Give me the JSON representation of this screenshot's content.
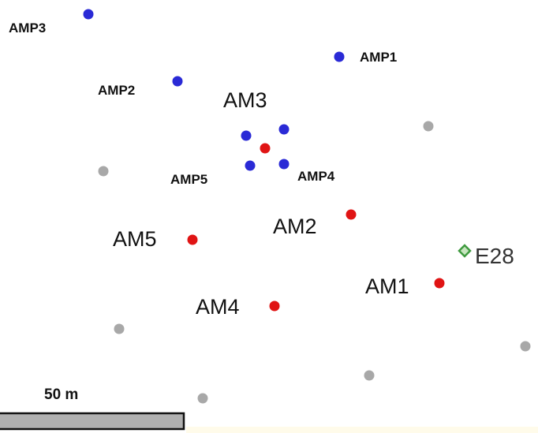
{
  "colors": {
    "amp_point": "#2a2ad6",
    "am_point": "#e01414",
    "other_point": "#a8a8a8",
    "e_marker_stroke": "#3f9a3f",
    "e_marker_fill": "#c8e6c0",
    "scalebar_fill": "#b0b0b0",
    "scalebar_stroke": "#111111",
    "strip": "#fffbea"
  },
  "icons": {
    "amp_point": "blue-dot",
    "am_point": "red-dot",
    "other_point": "grey-dot",
    "e_marker": "green-diamond"
  },
  "labels": {
    "amp3": "AMP3",
    "amp1": "AMP1",
    "amp2": "AMP2",
    "amp5": "AMP5",
    "amp4": "AMP4",
    "am3": "AM3",
    "am2": "AM2",
    "am5": "AM5",
    "am1": "AM1",
    "am4": "AM4",
    "e28": "E28"
  },
  "scale_bar": {
    "label": "50 m"
  }
}
